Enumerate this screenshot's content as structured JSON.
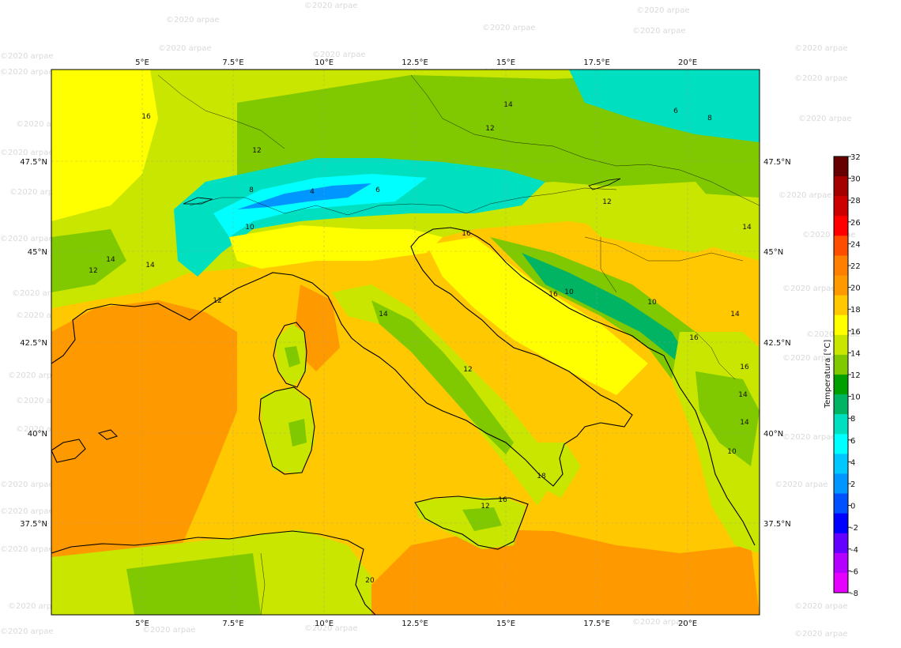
{
  "watermark": "©2020 arpae",
  "lon_labels": [
    "5°E",
    "7.5°E",
    "10°E",
    "12.5°E",
    "15°E",
    "17.5°E",
    "20°E"
  ],
  "lat_labels": [
    "47.5°N",
    "45°N",
    "42.5°N",
    "40°N",
    "37.5°N"
  ],
  "contour_labels": [
    "16",
    "12",
    "8",
    "4",
    "6",
    "10",
    "12",
    "14",
    "12",
    "6",
    "8",
    "14",
    "14",
    "14",
    "12",
    "12",
    "16",
    "10",
    "10",
    "14",
    "12",
    "16",
    "14",
    "16",
    "14",
    "10",
    "18",
    "16",
    "12",
    "20",
    "14",
    "16"
  ],
  "colorbar": {
    "label": "Temperatura [°C]",
    "ticks": [
      "32",
      "30",
      "28",
      "26",
      "24",
      "22",
      "20",
      "18",
      "16",
      "14",
      "12",
      "10",
      "8",
      "6",
      "4",
      "2",
      "0",
      "-2",
      "-4",
      "-6",
      "-8"
    ],
    "colors": [
      "#660000",
      "#a50000",
      "#cc0000",
      "#ff0000",
      "#ff4d00",
      "#ff7f00",
      "#ff9900",
      "#ffc800",
      "#ffff00",
      "#c8e600",
      "#80c800",
      "#00a000",
      "#00b464",
      "#00e0c0",
      "#00ffff",
      "#00c8ff",
      "#0096ff",
      "#0050ff",
      "#0000ff",
      "#6400ff",
      "#b400ff",
      "#e600ff"
    ]
  },
  "colors": {
    "sea_warm": "#ffc800",
    "sea_hot": "#ff9900",
    "land_mild": "#ffff00",
    "land_cool": "#c8e600",
    "land_green": "#80c800",
    "mountain_cold": "#00e0c0",
    "mountain_frost": "#0096ff"
  }
}
